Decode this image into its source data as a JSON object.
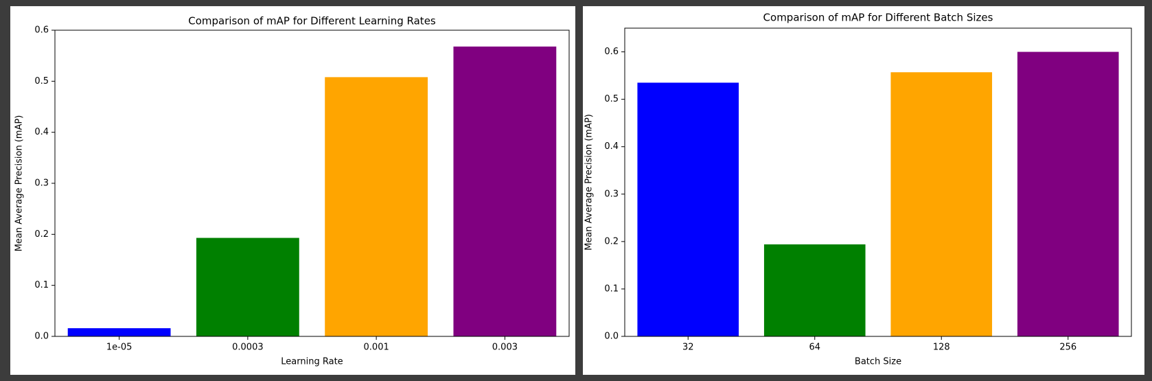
{
  "chart_data": [
    {
      "type": "bar",
      "title": "Comparison of mAP for Different Learning Rates",
      "x_label": "Learning Rate",
      "y_label": "Mean Average Precision (mAP)",
      "categories": [
        "1e-05",
        "0.0003",
        "0.001",
        "0.003"
      ],
      "values": [
        0.016,
        0.193,
        0.508,
        0.568
      ],
      "colors": [
        "#0000ff",
        "#008000",
        "#ffa500",
        "#800080"
      ],
      "ylim": [
        0,
        0.6
      ],
      "yticks": [
        {
          "value": 0,
          "label": "0.0"
        },
        0.1,
        0.2,
        0.3,
        0.4,
        0.5,
        0.6
      ]
    },
    {
      "type": "bar",
      "title": "Comparison of mAP for Different Batch Sizes",
      "x_label": "Batch Size",
      "y_label": "Mean Average Precision (mAP)",
      "categories": [
        "32",
        "64",
        "128",
        "256"
      ],
      "values": [
        0.535,
        0.194,
        0.557,
        0.6
      ],
      "colors": [
        "#0000ff",
        "#008000",
        "#ffa500",
        "#800080"
      ],
      "ylim": [
        0,
        0.65
      ],
      "yticks": [
        {
          "value": 0,
          "label": "0.0"
        },
        0.1,
        0.2,
        0.3,
        0.4,
        0.5,
        0.6
      ]
    }
  ]
}
